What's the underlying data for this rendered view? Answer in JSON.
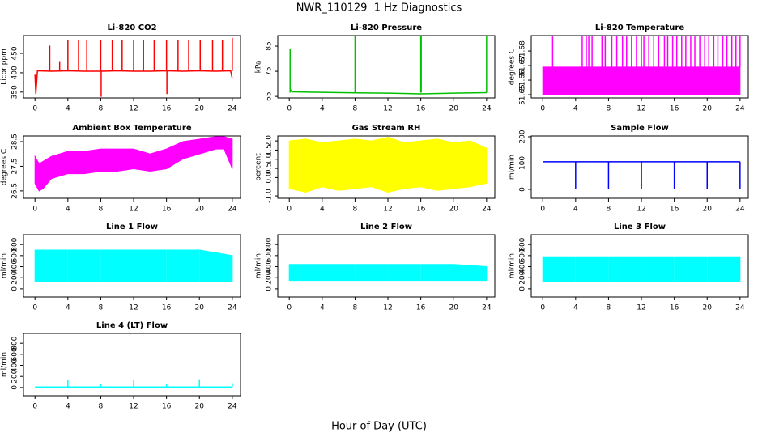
{
  "title": "NWR_110129  1 Hz Diagnostics",
  "xlabel": "Hour of Day (UTC)",
  "chart_data": [
    {
      "type": "line",
      "title": "Li-820 CO2",
      "ylabel": "Licor ppm",
      "xlim": [
        -1.4,
        25
      ],
      "xticks": [
        0,
        4,
        8,
        12,
        16,
        20,
        24
      ],
      "ylim": [
        335,
        496
      ],
      "yticks": [
        350,
        400,
        450
      ],
      "line": {
        "color": "#ff0000",
        "x": [
          0,
          0.1,
          0.3,
          2,
          4,
          6,
          8,
          10,
          12,
          14,
          16,
          18,
          20,
          22,
          23.8,
          24
        ],
        "values": [
          395,
          345,
          405,
          404,
          405,
          404,
          404,
          405,
          404,
          404,
          405,
          404,
          405,
          404,
          405,
          385
        ]
      },
      "spikes": {
        "color": "#ff0000",
        "from": 405,
        "x": [
          1.8,
          3.0,
          4.0,
          5.3,
          6.3,
          8.0,
          8.05,
          9.4,
          10.6,
          12.0,
          13.2,
          14.5,
          16.0,
          16.05,
          17.4,
          18.7,
          20.1,
          21.6,
          22.8,
          24.0
        ],
        "values": [
          470,
          430,
          485,
          485,
          485,
          485,
          338,
          485,
          485,
          485,
          485,
          485,
          485,
          345,
          485,
          485,
          485,
          485,
          485,
          490
        ]
      }
    },
    {
      "type": "line",
      "title": "Li-820 Pressure",
      "ylabel": "kPa",
      "xlim": [
        -1.4,
        25
      ],
      "xticks": [
        0,
        4,
        8,
        12,
        16,
        20,
        24
      ],
      "ylim": [
        64.4,
        89.2
      ],
      "yticks": [
        65,
        75,
        85
      ],
      "line": {
        "color": "#00c000",
        "x": [
          0.1,
          0.3,
          4,
          8,
          12,
          16,
          20,
          24
        ],
        "values": [
          68,
          66.8,
          66.6,
          66.4,
          66.3,
          66.0,
          66.3,
          66.5
        ]
      },
      "spikes": {
        "color": "#00c000",
        "from": 66.5,
        "x": [
          0.1,
          8,
          16,
          16.05,
          24
        ],
        "values": [
          84,
          89,
          89,
          89,
          89
        ]
      }
    },
    {
      "type": "line",
      "title": "Li-820 Temperature",
      "ylabel": "degrees C",
      "xlim": [
        -1.4,
        25
      ],
      "xticks": [
        0,
        4,
        8,
        12,
        16,
        20,
        24
      ],
      "ylim": [
        51.6478,
        51.6906
      ],
      "yticks": [
        51.65,
        51.66,
        51.67,
        51.68
      ],
      "band": {
        "color": "#ff00ff",
        "x": [
          0,
          24
        ],
        "low": [
          51.65,
          51.65
        ],
        "high": [
          51.669,
          51.669
        ]
      },
      "spikes": {
        "color": "#ff00ff",
        "from": 51.669,
        "x": [
          1.2,
          4.8,
          5.3,
          5.6,
          6.0,
          7.2,
          7.6,
          8.4,
          9.0,
          9.7,
          10.2,
          10.8,
          11.4,
          12.0,
          12.3,
          12.9,
          13.5,
          14.1,
          14.8,
          15.2,
          15.8,
          16.3,
          16.9,
          17.4,
          18.0,
          18.5,
          19.1,
          19.7,
          20.2,
          20.8,
          21.3,
          21.9,
          22.4,
          23.0,
          23.5,
          24.0
        ],
        "values": [
          51.69,
          51.69,
          51.69,
          51.69,
          51.69,
          51.69,
          51.69,
          51.69,
          51.69,
          51.69,
          51.69,
          51.69,
          51.69,
          51.69,
          51.69,
          51.69,
          51.69,
          51.69,
          51.69,
          51.69,
          51.69,
          51.69,
          51.69,
          51.69,
          51.69,
          51.69,
          51.69,
          51.69,
          51.69,
          51.69,
          51.69,
          51.69,
          51.69,
          51.69,
          51.69,
          51.69
        ]
      }
    },
    {
      "type": "line",
      "title": "Ambient Box Temperature",
      "ylabel": "degrees C",
      "xlim": [
        -1.4,
        25
      ],
      "xticks": [
        0,
        4,
        8,
        12,
        16,
        20,
        24
      ],
      "ylim": [
        26.2,
        28.73
      ],
      "yticks": [
        26.5,
        27.5,
        28.5
      ],
      "band": {
        "color": "#ff00ff",
        "x": [
          0,
          0.5,
          1,
          2,
          4,
          6,
          8,
          10,
          12,
          14,
          16,
          18,
          20,
          22,
          23,
          24
        ],
        "low": [
          26.8,
          26.5,
          26.6,
          27.0,
          27.2,
          27.2,
          27.3,
          27.3,
          27.4,
          27.3,
          27.4,
          27.8,
          28.0,
          28.2,
          28.2,
          27.4
        ],
        "high": [
          27.9,
          27.6,
          27.7,
          27.9,
          28.1,
          28.1,
          28.2,
          28.2,
          28.2,
          28.0,
          28.2,
          28.5,
          28.6,
          28.7,
          28.7,
          28.6
        ]
      }
    },
    {
      "type": "line",
      "title": "Gas Stream RH",
      "ylabel": "percent",
      "xlim": [
        -1.4,
        25
      ],
      "xticks": [
        0,
        4,
        8,
        12,
        16,
        20,
        24
      ],
      "ylim": [
        -1.13,
        2.27
      ],
      "yticks": [
        {
          "value": -1,
          "label": "-1.0"
        },
        {
          "value": 0,
          "label": "0.0"
        },
        0.5,
        {
          "value": 1,
          "label": "1.0"
        },
        1.5,
        {
          "value": 2,
          "label": "2.0"
        }
      ],
      "band": {
        "color": "#ffff00",
        "x": [
          0,
          2,
          4,
          6,
          8,
          10,
          12,
          14,
          16,
          18,
          20,
          22,
          24
        ],
        "low": [
          -0.6,
          -0.8,
          -0.5,
          -0.7,
          -0.6,
          -0.5,
          -0.8,
          -0.6,
          -0.5,
          -0.7,
          -0.6,
          -0.5,
          -0.3
        ],
        "high": [
          2.0,
          2.1,
          1.9,
          2.0,
          2.1,
          2.0,
          2.2,
          1.9,
          2.0,
          2.1,
          1.9,
          2.0,
          1.6
        ]
      }
    },
    {
      "type": "line",
      "title": "Sample Flow",
      "ylabel": "ml/min",
      "xlim": [
        -1.4,
        25
      ],
      "xticks": [
        0,
        4,
        8,
        12,
        16,
        20,
        24
      ],
      "ylim": [
        -34,
        203
      ],
      "yticks": [
        0,
        100,
        200
      ],
      "line": {
        "color": "#0000ff",
        "x": [
          0,
          24
        ],
        "values": [
          105,
          105
        ]
      },
      "spikes": {
        "color": "#0000ff",
        "from": 105,
        "x": [
          4,
          8,
          12,
          16,
          20,
          24
        ],
        "values": [
          0,
          0,
          0,
          0,
          0,
          0
        ]
      }
    },
    {
      "type": "line",
      "title": "Line 1 Flow",
      "ylabel": "ml/min",
      "xlim": [
        -1.4,
        25
      ],
      "xticks": [
        0,
        4,
        8,
        12,
        16,
        20,
        24
      ],
      "ylim": [
        -148,
        978
      ],
      "yticks": [
        0,
        200,
        400,
        600,
        800
      ],
      "band": {
        "color": "#00ffff",
        "x": [
          0,
          3.95,
          4,
          4.05,
          7.95,
          8,
          8.05,
          11.95,
          12,
          12.05,
          15.95,
          16,
          16.05,
          19.95,
          20,
          20.05,
          24
        ],
        "low": [
          130,
          130,
          null,
          130,
          130,
          null,
          130,
          130,
          null,
          130,
          130,
          null,
          130,
          130,
          null,
          130,
          130
        ],
        "high": [
          700,
          700,
          null,
          700,
          700,
          null,
          700,
          700,
          null,
          700,
          700,
          null,
          700,
          700,
          null,
          700,
          600
        ]
      }
    },
    {
      "type": "line",
      "title": "Line 2 Flow",
      "ylabel": "ml/min",
      "xlim": [
        -1.4,
        25
      ],
      "xticks": [
        0,
        4,
        8,
        12,
        16,
        20,
        24
      ],
      "ylim": [
        -148,
        978
      ],
      "yticks": [
        0,
        200,
        400,
        600,
        800
      ],
      "band": {
        "color": "#00ffff",
        "x": [
          0,
          3.95,
          4,
          4.05,
          7.95,
          8,
          8.05,
          11.95,
          12,
          12.05,
          15.95,
          16,
          16.05,
          19.95,
          20,
          20.05,
          24
        ],
        "low": [
          150,
          150,
          null,
          150,
          150,
          null,
          150,
          150,
          null,
          150,
          150,
          null,
          150,
          150,
          null,
          150,
          150
        ],
        "high": [
          440,
          440,
          null,
          440,
          440,
          null,
          440,
          440,
          null,
          440,
          440,
          null,
          440,
          440,
          null,
          440,
          400
        ]
      }
    },
    {
      "type": "line",
      "title": "Line 3 Flow",
      "ylabel": "ml/min",
      "xlim": [
        -1.4,
        25
      ],
      "xticks": [
        0,
        4,
        8,
        12,
        16,
        20,
        24
      ],
      "ylim": [
        -148,
        978
      ],
      "yticks": [
        0,
        200,
        400,
        600,
        800
      ],
      "band": {
        "color": "#00ffff",
        "x": [
          0,
          3.95,
          4,
          4.05,
          7.95,
          8,
          8.05,
          11.95,
          12,
          12.05,
          15.95,
          16,
          16.05,
          19.95,
          20,
          20.05,
          24
        ],
        "low": [
          130,
          130,
          null,
          130,
          130,
          null,
          130,
          130,
          null,
          130,
          130,
          null,
          130,
          130,
          null,
          130,
          130
        ],
        "high": [
          580,
          580,
          null,
          580,
          580,
          null,
          580,
          580,
          null,
          580,
          580,
          null,
          580,
          580,
          null,
          580,
          580
        ]
      }
    },
    {
      "type": "line",
      "title": "Line 4 (LT) Flow",
      "ylabel": "ml/min",
      "xlim": [
        -1.4,
        25
      ],
      "xticks": [
        0,
        4,
        8,
        12,
        16,
        20,
        24
      ],
      "ylim": [
        -148,
        978
      ],
      "yticks": [
        0,
        200,
        400,
        600,
        800
      ],
      "line": {
        "color": "#00ffff",
        "x": [
          0,
          24
        ],
        "values": [
          10,
          10
        ]
      },
      "spikes": {
        "color": "#00ffff",
        "from": 10,
        "x": [
          4,
          8,
          12,
          16,
          20,
          24
        ],
        "values": [
          140,
          60,
          140,
          60,
          150,
          80
        ]
      }
    }
  ]
}
